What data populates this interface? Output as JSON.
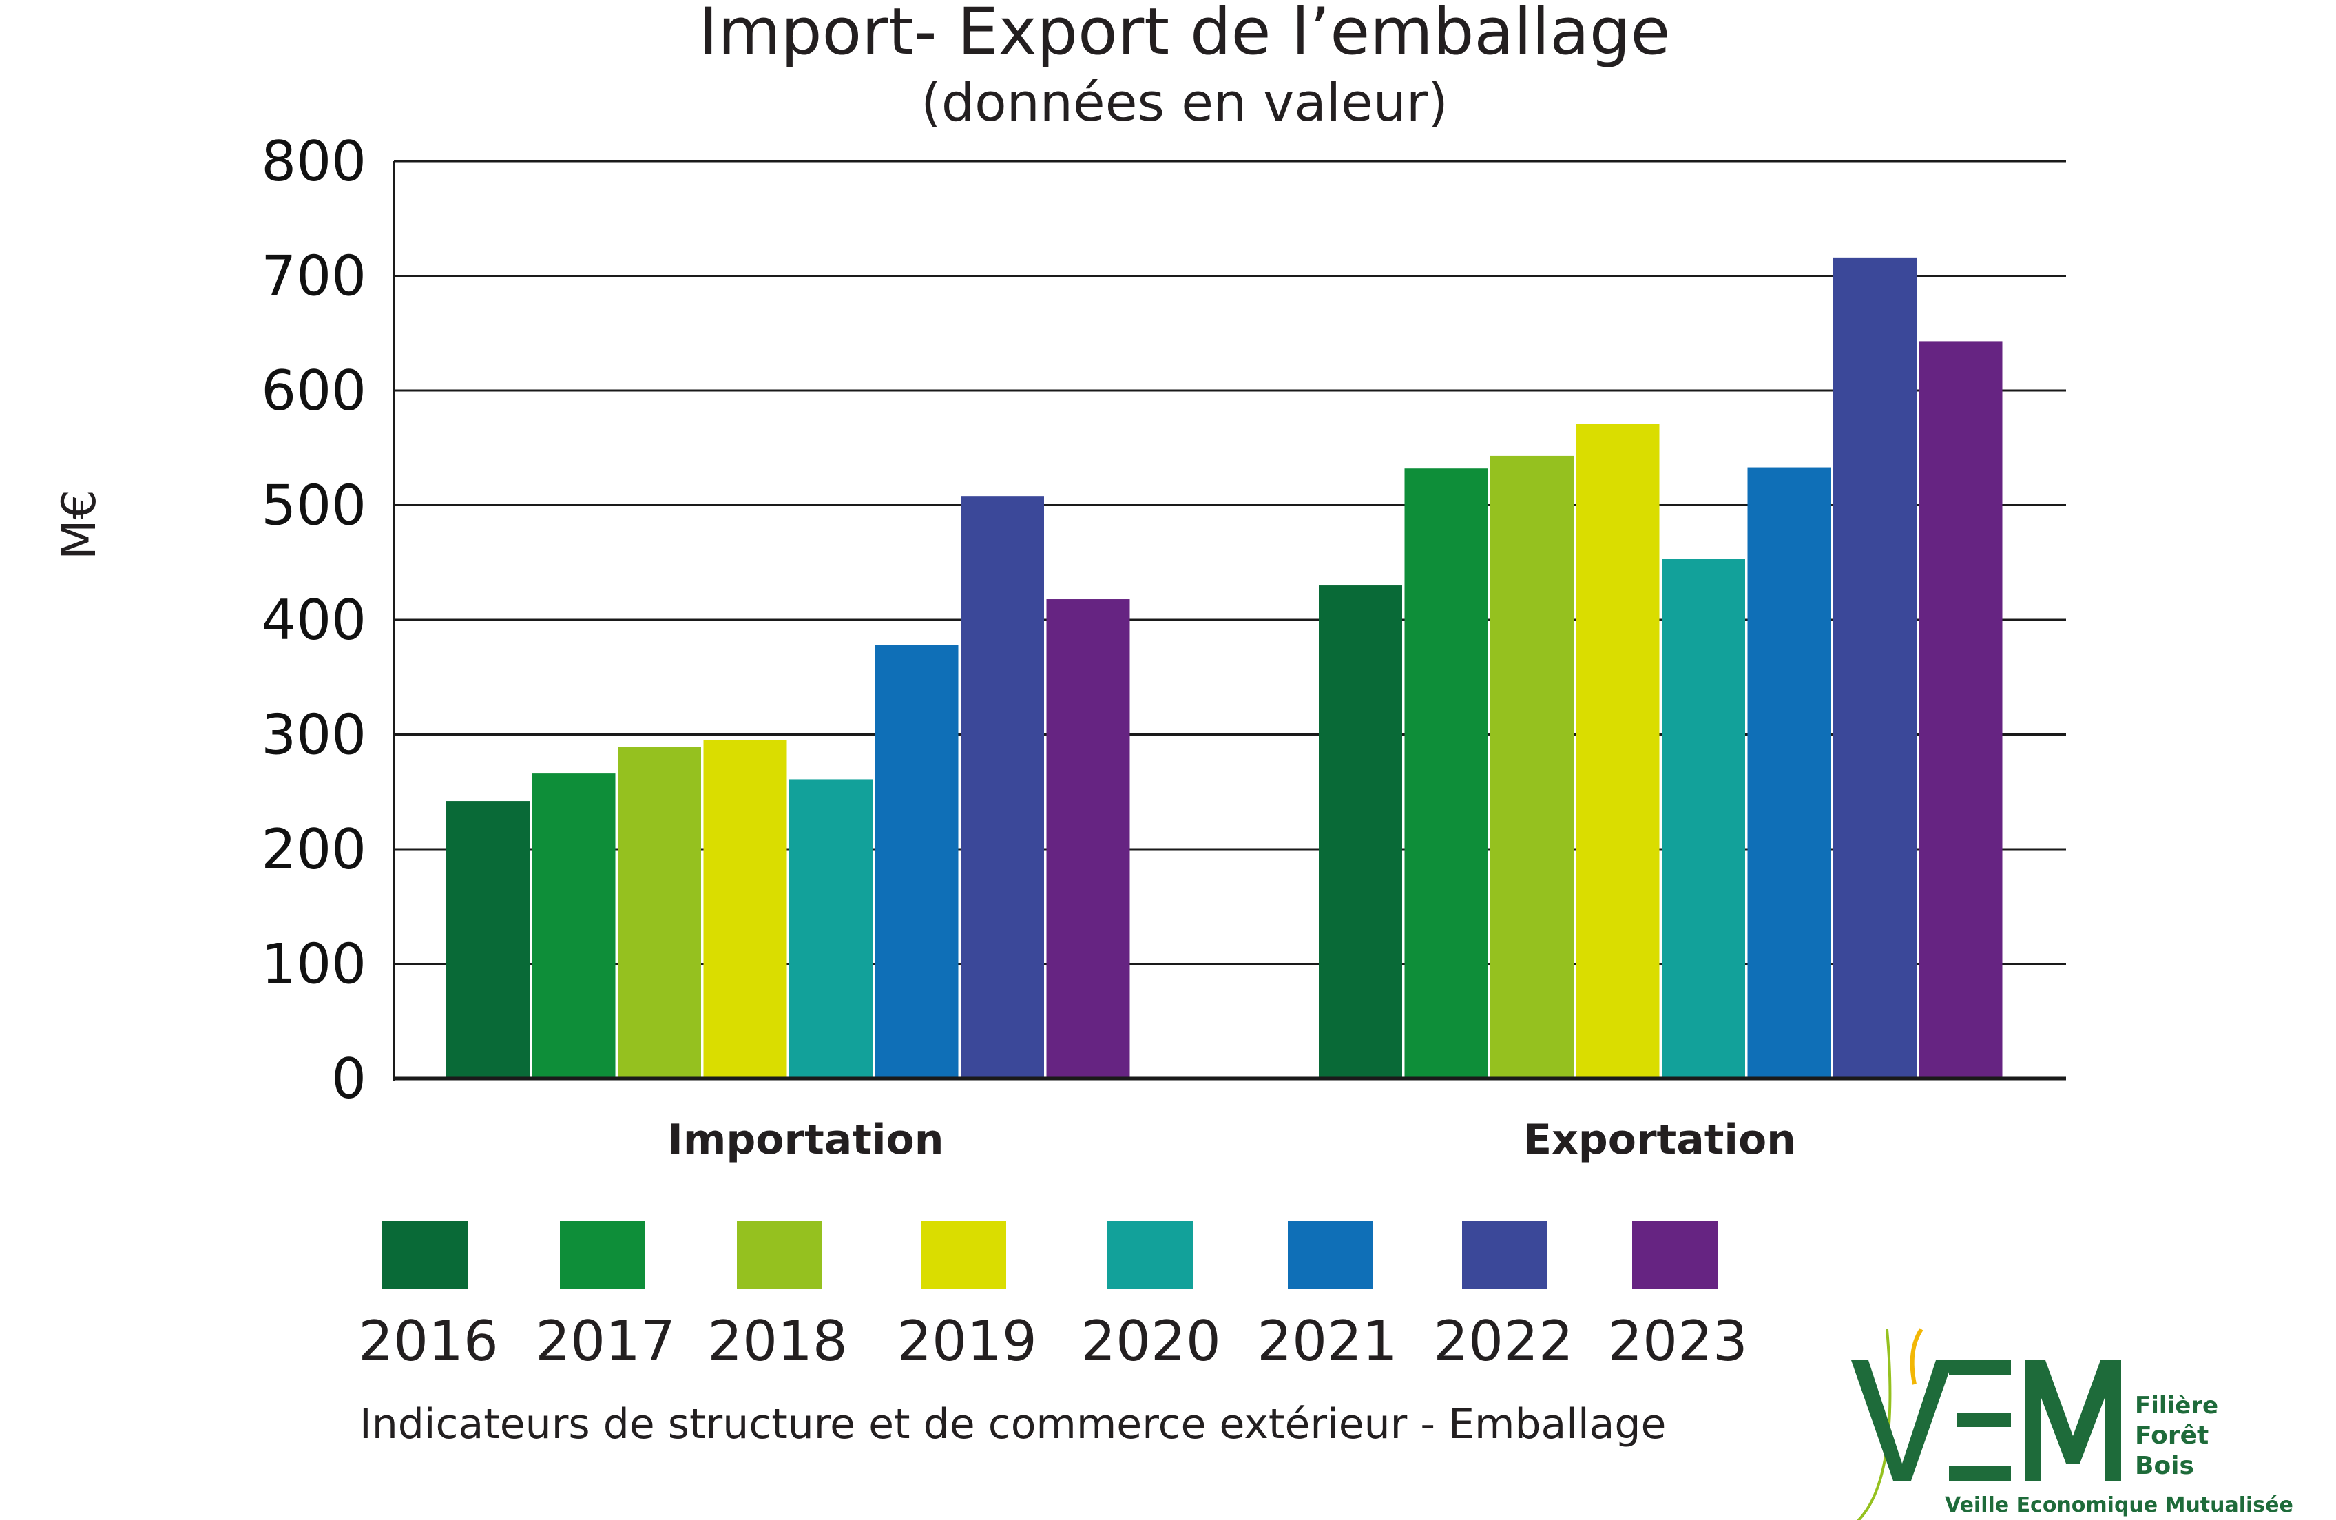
{
  "chart_data": {
    "type": "bar",
    "title": "Import- Export de l’emballage",
    "subtitle": "(données en valeur)",
    "ylabel": "M€",
    "xlabel": "",
    "ylim": [
      0,
      800
    ],
    "yticks": [
      0,
      100,
      200,
      300,
      400,
      500,
      600,
      700,
      800
    ],
    "grid": true,
    "legend_position": "bottom",
    "categories": [
      "Importation",
      "Exportation"
    ],
    "series": [
      {
        "name": "2016",
        "color": "#096a37",
        "values": [
          242,
          430
        ]
      },
      {
        "name": "2017",
        "color": "#0e8e39",
        "values": [
          266,
          532
        ]
      },
      {
        "name": "2018",
        "color": "#95c11f",
        "values": [
          289,
          543
        ]
      },
      {
        "name": "2019",
        "color": "#dadd00",
        "values": [
          295,
          571
        ]
      },
      {
        "name": "2020",
        "color": "#12a19a",
        "values": [
          261,
          453
        ]
      },
      {
        "name": "2021",
        "color": "#0f6fb7",
        "values": [
          378,
          533
        ]
      },
      {
        "name": "2022",
        "color": "#3b4899",
        "values": [
          508,
          716
        ]
      },
      {
        "name": "2023",
        "color": "#662482",
        "values": [
          418,
          643
        ]
      }
    ]
  },
  "source_note": "Indicateurs de structure et de commerce extérieur - Emballage",
  "logo": {
    "text": "VEM",
    "line1": "Filière",
    "line2": "Forêt",
    "line3": "Bois",
    "tagline": "Veille Economique Mutualisée",
    "color": "#1e6b3a",
    "accent": "#f2b705"
  }
}
